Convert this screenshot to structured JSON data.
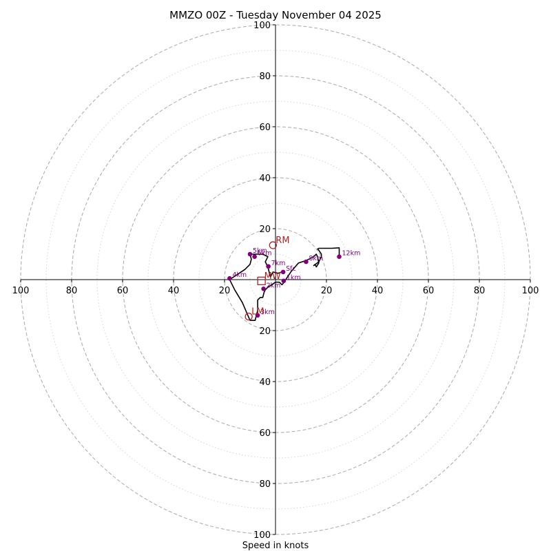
{
  "chart_data": {
    "type": "hodograph",
    "title": "MMZO 00Z - Tuesday November 04 2025",
    "xlabel": "Speed in knots",
    "xlim": [
      -100,
      100
    ],
    "ylim": [
      -100,
      100
    ],
    "xticks": [
      -100,
      -80,
      -60,
      -40,
      -20,
      20,
      40,
      60,
      80,
      100
    ],
    "yticks": [
      -100,
      -80,
      -60,
      -40,
      -20,
      20,
      40,
      60,
      80,
      100
    ],
    "tick_labels_x": [
      "100",
      "80",
      "60",
      "40",
      "20",
      "20",
      "40",
      "60",
      "80",
      "100"
    ],
    "tick_labels_y": [
      "100",
      "80",
      "60",
      "40",
      "20",
      "20",
      "40",
      "60",
      "80",
      "100"
    ],
    "rings_major": [
      20,
      40,
      60,
      80,
      100
    ],
    "rings_minor": [
      10,
      30,
      50,
      70,
      90
    ],
    "hodograph_trace": {
      "color": "#000000",
      "points": [
        [
          3,
          3
        ],
        [
          2.5,
          3
        ],
        [
          1,
          2.5
        ],
        [
          -1,
          3
        ],
        [
          -2,
          1
        ],
        [
          -3,
          5
        ],
        [
          -4,
          7
        ],
        [
          -3,
          9
        ],
        [
          -5,
          10
        ],
        [
          -7,
          10
        ],
        [
          -10,
          10
        ],
        [
          -9.5,
          8
        ],
        [
          -10,
          6
        ],
        [
          -12,
          4
        ],
        [
          -15,
          2
        ],
        [
          -18,
          0
        ],
        [
          -16,
          -4
        ],
        [
          -13,
          -9
        ],
        [
          -10,
          -16
        ],
        [
          -8,
          -16
        ],
        [
          -7,
          -12
        ],
        [
          -7,
          -8
        ],
        [
          -6,
          -7
        ],
        [
          -5,
          -7
        ],
        [
          -4.5,
          -5
        ],
        [
          -4,
          -4
        ],
        [
          -3,
          -3
        ],
        [
          -1.5,
          -2
        ],
        [
          0,
          -1
        ],
        [
          1.5,
          -1
        ],
        [
          2.5,
          -2
        ],
        [
          3,
          -1.5
        ],
        [
          4,
          0
        ],
        [
          6,
          3
        ],
        [
          9,
          6.5
        ],
        [
          12,
          7.5
        ],
        [
          15,
          9
        ],
        [
          16,
          10
        ],
        [
          16.5,
          9
        ],
        [
          17,
          6.5
        ],
        [
          16,
          5
        ],
        [
          15.5,
          6
        ],
        [
          15,
          5.5
        ],
        [
          17,
          7
        ],
        [
          18,
          9
        ],
        [
          18,
          10
        ],
        [
          17,
          11.5
        ],
        [
          16.5,
          12
        ],
        [
          17,
          12.3
        ],
        [
          22,
          12.3
        ],
        [
          25,
          12.5
        ],
        [
          25,
          9.5
        ]
      ]
    },
    "height_markers": [
      {
        "label": "Sfc",
        "u": 3,
        "v": 3
      },
      {
        "label": "1km",
        "u": 3.2,
        "v": -0.5
      },
      {
        "label": "2km",
        "u": -4.7,
        "v": -3.6
      },
      {
        "label": "3km",
        "u": -7,
        "v": -14
      },
      {
        "label": "4km",
        "u": -18,
        "v": 0.5
      },
      {
        "label": "5km",
        "u": -10,
        "v": 10
      },
      {
        "label": "6km",
        "u": -8.2,
        "v": 9
      },
      {
        "label": "7km",
        "u": -2.8,
        "v": 5.2
      },
      {
        "label": "8km",
        "u": 12,
        "v": 7
      },
      {
        "label": "12km",
        "u": 25,
        "v": 9
      }
    ],
    "storm_motion": [
      {
        "label": "RM",
        "u": -1,
        "v": 13.5,
        "symbol": "circle"
      },
      {
        "label": "LM",
        "u": -10.5,
        "v": -14.5,
        "symbol": "circle"
      },
      {
        "label": "MW",
        "u": -5.5,
        "v": -0.5,
        "symbol": "square"
      }
    ],
    "colors": {
      "markers": "#800080",
      "storm_motion": "#b22222",
      "axes": "#000000",
      "grid": "#b0b0b0",
      "minor_grid": "#d3d3d3"
    }
  }
}
